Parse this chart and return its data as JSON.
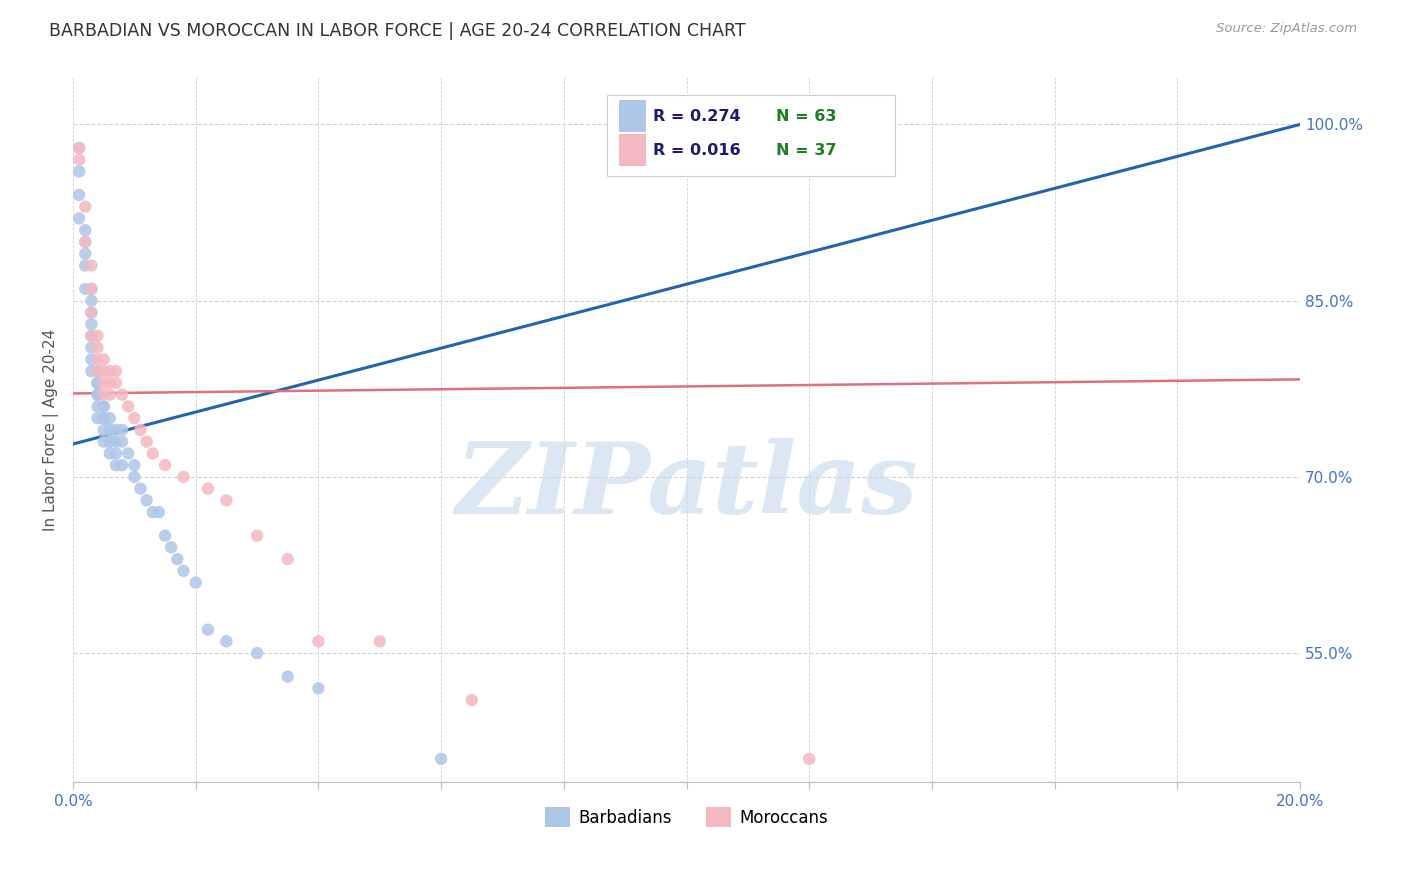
{
  "title": "BARBADIAN VS MOROCCAN IN LABOR FORCE | AGE 20-24 CORRELATION CHART",
  "source": "Source: ZipAtlas.com",
  "xlabel": "",
  "ylabel": "In Labor Force | Age 20-24",
  "xlim": [
    0.0,
    0.2
  ],
  "ylim": [
    0.44,
    1.04
  ],
  "xticks": [
    0.0,
    0.02,
    0.04,
    0.06,
    0.08,
    0.1,
    0.12,
    0.14,
    0.16,
    0.18,
    0.2
  ],
  "xticklabels": [
    "0.0%",
    "",
    "",
    "",
    "",
    "",
    "",
    "",
    "",
    "",
    "20.0%"
  ],
  "ytick_positions": [
    0.55,
    0.7,
    0.85,
    1.0
  ],
  "ytick_labels": [
    "55.0%",
    "70.0%",
    "85.0%",
    "100.0%"
  ],
  "blue_color": "#aec6e8",
  "pink_color": "#f4b8c1",
  "blue_line_color": "#2166ac",
  "pink_line_color": "#e07080",
  "legend_R1": "R = 0.274",
  "legend_N1": "N = 63",
  "legend_R2": "R = 0.016",
  "legend_N2": "N = 37",
  "watermark": "ZIPatlas",
  "watermark_color": "#c5d8ee",
  "blue_x": [
    0.001,
    0.001,
    0.001,
    0.001,
    0.002,
    0.002,
    0.002,
    0.002,
    0.002,
    0.003,
    0.003,
    0.003,
    0.003,
    0.003,
    0.003,
    0.003,
    0.003,
    0.004,
    0.004,
    0.004,
    0.004,
    0.004,
    0.004,
    0.004,
    0.004,
    0.005,
    0.005,
    0.005,
    0.005,
    0.005,
    0.005,
    0.005,
    0.006,
    0.006,
    0.006,
    0.006,
    0.006,
    0.006,
    0.007,
    0.007,
    0.007,
    0.007,
    0.008,
    0.008,
    0.008,
    0.009,
    0.01,
    0.01,
    0.011,
    0.012,
    0.013,
    0.014,
    0.015,
    0.016,
    0.017,
    0.018,
    0.02,
    0.022,
    0.025,
    0.03,
    0.035,
    0.04,
    0.06
  ],
  "blue_y": [
    0.98,
    0.96,
    0.94,
    0.92,
    0.91,
    0.9,
    0.89,
    0.88,
    0.86,
    0.86,
    0.85,
    0.84,
    0.83,
    0.82,
    0.81,
    0.8,
    0.79,
    0.79,
    0.78,
    0.78,
    0.78,
    0.77,
    0.77,
    0.76,
    0.75,
    0.76,
    0.76,
    0.75,
    0.75,
    0.75,
    0.74,
    0.73,
    0.75,
    0.74,
    0.74,
    0.73,
    0.73,
    0.72,
    0.74,
    0.73,
    0.72,
    0.71,
    0.74,
    0.73,
    0.71,
    0.72,
    0.71,
    0.7,
    0.69,
    0.68,
    0.67,
    0.67,
    0.65,
    0.64,
    0.63,
    0.62,
    0.61,
    0.57,
    0.56,
    0.55,
    0.53,
    0.52,
    0.46
  ],
  "pink_x": [
    0.001,
    0.001,
    0.002,
    0.002,
    0.003,
    0.003,
    0.003,
    0.003,
    0.004,
    0.004,
    0.004,
    0.004,
    0.005,
    0.005,
    0.005,
    0.005,
    0.006,
    0.006,
    0.006,
    0.007,
    0.007,
    0.008,
    0.009,
    0.01,
    0.011,
    0.012,
    0.013,
    0.015,
    0.018,
    0.022,
    0.025,
    0.03,
    0.035,
    0.04,
    0.05,
    0.065,
    0.12
  ],
  "pink_y": [
    0.98,
    0.97,
    0.93,
    0.9,
    0.88,
    0.86,
    0.84,
    0.82,
    0.82,
    0.81,
    0.8,
    0.79,
    0.8,
    0.79,
    0.78,
    0.77,
    0.79,
    0.78,
    0.77,
    0.79,
    0.78,
    0.77,
    0.76,
    0.75,
    0.74,
    0.73,
    0.72,
    0.71,
    0.7,
    0.69,
    0.68,
    0.65,
    0.63,
    0.56,
    0.56,
    0.51,
    0.46
  ],
  "blue_line_x": [
    0.0,
    0.2
  ],
  "blue_line_y": [
    0.728,
    1.0
  ],
  "pink_line_x": [
    0.0,
    0.2
  ],
  "pink_line_y": [
    0.771,
    0.783
  ],
  "grid_color": "#d0d0d0",
  "bg_color": "#ffffff",
  "title_color": "#333333",
  "axis_label_color": "#555555",
  "tick_color": "#4472c4",
  "right_axis_color": "#4472c4"
}
